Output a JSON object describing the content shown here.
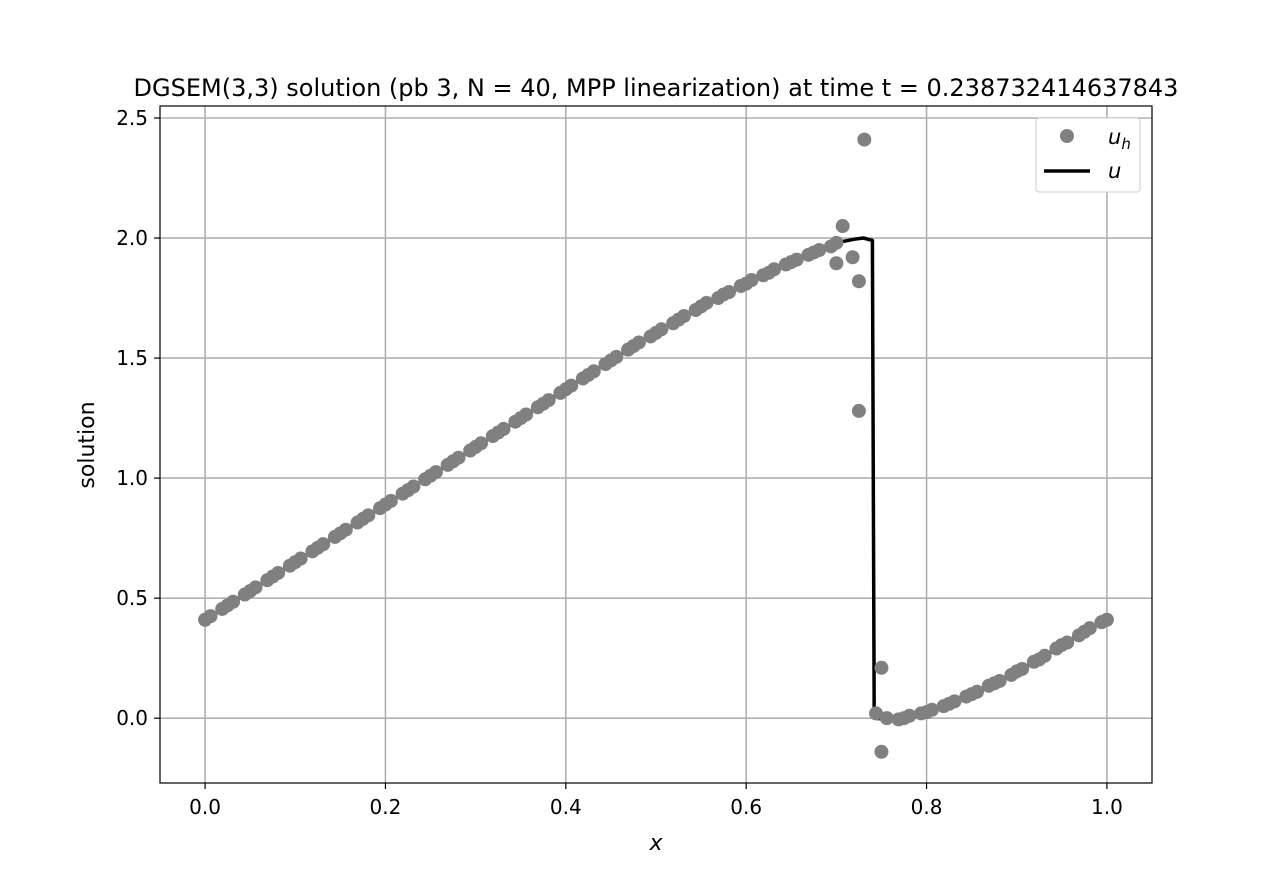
{
  "chart_data": {
    "type": "line",
    "title": "DGSEM(3,3) solution (pb 3, N = 40, MPP linearization) at time t = 0.238732414637843",
    "xlabel": "x",
    "ylabel": "solution",
    "xlim": [
      -0.05,
      1.05
    ],
    "ylim": [
      -0.27,
      2.55
    ],
    "xticks": [
      0.0,
      0.2,
      0.4,
      0.6,
      0.8,
      1.0
    ],
    "xtick_labels": [
      "0.0",
      "0.2",
      "0.4",
      "0.6",
      "0.8",
      "1.0"
    ],
    "yticks": [
      0.0,
      0.5,
      1.0,
      1.5,
      2.0,
      2.5
    ],
    "ytick_labels": [
      "0.0",
      "0.5",
      "1.0",
      "1.5",
      "2.0",
      "2.5"
    ],
    "grid": true,
    "legend_position": "top-right",
    "series": [
      {
        "name": "u_h",
        "kind": "scatter",
        "color": "#808080",
        "points": [
          [
            0.0,
            0.41
          ],
          [
            0.006,
            0.425
          ],
          [
            0.019,
            0.455
          ],
          [
            0.025,
            0.47
          ],
          [
            0.031,
            0.485
          ],
          [
            0.044,
            0.515
          ],
          [
            0.05,
            0.53
          ],
          [
            0.056,
            0.545
          ],
          [
            0.069,
            0.575
          ],
          [
            0.075,
            0.59
          ],
          [
            0.081,
            0.605
          ],
          [
            0.094,
            0.635
          ],
          [
            0.1,
            0.65
          ],
          [
            0.106,
            0.665
          ],
          [
            0.119,
            0.695
          ],
          [
            0.125,
            0.71
          ],
          [
            0.131,
            0.725
          ],
          [
            0.144,
            0.755
          ],
          [
            0.15,
            0.77
          ],
          [
            0.156,
            0.785
          ],
          [
            0.169,
            0.815
          ],
          [
            0.175,
            0.83
          ],
          [
            0.181,
            0.845
          ],
          [
            0.194,
            0.875
          ],
          [
            0.2,
            0.89
          ],
          [
            0.206,
            0.905
          ],
          [
            0.219,
            0.935
          ],
          [
            0.225,
            0.95
          ],
          [
            0.231,
            0.965
          ],
          [
            0.244,
            0.995
          ],
          [
            0.25,
            1.01
          ],
          [
            0.256,
            1.025
          ],
          [
            0.269,
            1.055
          ],
          [
            0.275,
            1.07
          ],
          [
            0.281,
            1.085
          ],
          [
            0.294,
            1.115
          ],
          [
            0.3,
            1.13
          ],
          [
            0.306,
            1.145
          ],
          [
            0.319,
            1.175
          ],
          [
            0.325,
            1.19
          ],
          [
            0.331,
            1.205
          ],
          [
            0.344,
            1.235
          ],
          [
            0.35,
            1.25
          ],
          [
            0.356,
            1.265
          ],
          [
            0.369,
            1.295
          ],
          [
            0.375,
            1.31
          ],
          [
            0.381,
            1.325
          ],
          [
            0.394,
            1.355
          ],
          [
            0.4,
            1.37
          ],
          [
            0.406,
            1.385
          ],
          [
            0.419,
            1.415
          ],
          [
            0.425,
            1.43
          ],
          [
            0.431,
            1.445
          ],
          [
            0.444,
            1.475
          ],
          [
            0.45,
            1.49
          ],
          [
            0.456,
            1.505
          ],
          [
            0.469,
            1.535
          ],
          [
            0.475,
            1.55
          ],
          [
            0.481,
            1.565
          ],
          [
            0.494,
            1.59
          ],
          [
            0.5,
            1.605
          ],
          [
            0.506,
            1.62
          ],
          [
            0.519,
            1.645
          ],
          [
            0.525,
            1.66
          ],
          [
            0.531,
            1.675
          ],
          [
            0.544,
            1.7
          ],
          [
            0.55,
            1.715
          ],
          [
            0.556,
            1.73
          ],
          [
            0.569,
            1.75
          ],
          [
            0.575,
            1.765
          ],
          [
            0.581,
            1.775
          ],
          [
            0.594,
            1.8
          ],
          [
            0.6,
            1.81
          ],
          [
            0.606,
            1.825
          ],
          [
            0.619,
            1.845
          ],
          [
            0.625,
            1.855
          ],
          [
            0.631,
            1.87
          ],
          [
            0.644,
            1.89
          ],
          [
            0.65,
            1.9
          ],
          [
            0.656,
            1.91
          ],
          [
            0.669,
            1.93
          ],
          [
            0.675,
            1.94
          ],
          [
            0.681,
            1.95
          ],
          [
            0.694,
            1.965
          ],
          [
            0.7,
            1.98
          ],
          [
            0.7,
            1.895
          ],
          [
            0.707,
            2.05
          ],
          [
            0.718,
            1.92
          ],
          [
            0.725,
            1.82
          ],
          [
            0.725,
            1.28
          ],
          [
            0.731,
            2.41
          ],
          [
            0.744,
            0.02
          ],
          [
            0.75,
            0.21
          ],
          [
            0.75,
            -0.14
          ],
          [
            0.756,
            0.0
          ],
          [
            0.769,
            -0.005
          ],
          [
            0.775,
            0.0
          ],
          [
            0.781,
            0.01
          ],
          [
            0.794,
            0.02
          ],
          [
            0.8,
            0.025
          ],
          [
            0.806,
            0.035
          ],
          [
            0.819,
            0.05
          ],
          [
            0.825,
            0.06
          ],
          [
            0.831,
            0.07
          ],
          [
            0.844,
            0.09
          ],
          [
            0.85,
            0.1
          ],
          [
            0.856,
            0.11
          ],
          [
            0.869,
            0.135
          ],
          [
            0.875,
            0.145
          ],
          [
            0.881,
            0.155
          ],
          [
            0.894,
            0.18
          ],
          [
            0.9,
            0.195
          ],
          [
            0.906,
            0.205
          ],
          [
            0.919,
            0.235
          ],
          [
            0.925,
            0.245
          ],
          [
            0.931,
            0.26
          ],
          [
            0.944,
            0.29
          ],
          [
            0.95,
            0.305
          ],
          [
            0.956,
            0.315
          ],
          [
            0.969,
            0.345
          ],
          [
            0.975,
            0.36
          ],
          [
            0.981,
            0.375
          ],
          [
            0.994,
            0.4
          ],
          [
            1.0,
            0.41
          ]
        ]
      },
      {
        "name": "u",
        "kind": "line",
        "color": "#000000",
        "points": [
          [
            0.0,
            0.41
          ],
          [
            0.05,
            0.53
          ],
          [
            0.1,
            0.65
          ],
          [
            0.15,
            0.77
          ],
          [
            0.2,
            0.89
          ],
          [
            0.25,
            1.01
          ],
          [
            0.3,
            1.13
          ],
          [
            0.35,
            1.25
          ],
          [
            0.4,
            1.37
          ],
          [
            0.45,
            1.49
          ],
          [
            0.5,
            1.605
          ],
          [
            0.55,
            1.715
          ],
          [
            0.6,
            1.81
          ],
          [
            0.65,
            1.9
          ],
          [
            0.68,
            1.95
          ],
          [
            0.7,
            1.98
          ],
          [
            0.72,
            1.995
          ],
          [
            0.73,
            2.0
          ],
          [
            0.74,
            1.99
          ],
          [
            0.742,
            0.0
          ],
          [
            0.76,
            -0.005
          ],
          [
            0.78,
            0.005
          ],
          [
            0.8,
            0.025
          ],
          [
            0.82,
            0.05
          ],
          [
            0.84,
            0.085
          ],
          [
            0.86,
            0.12
          ],
          [
            0.88,
            0.155
          ],
          [
            0.9,
            0.195
          ],
          [
            0.92,
            0.235
          ],
          [
            0.94,
            0.28
          ],
          [
            0.96,
            0.325
          ],
          [
            0.98,
            0.37
          ],
          [
            1.0,
            0.41
          ]
        ]
      }
    ]
  }
}
